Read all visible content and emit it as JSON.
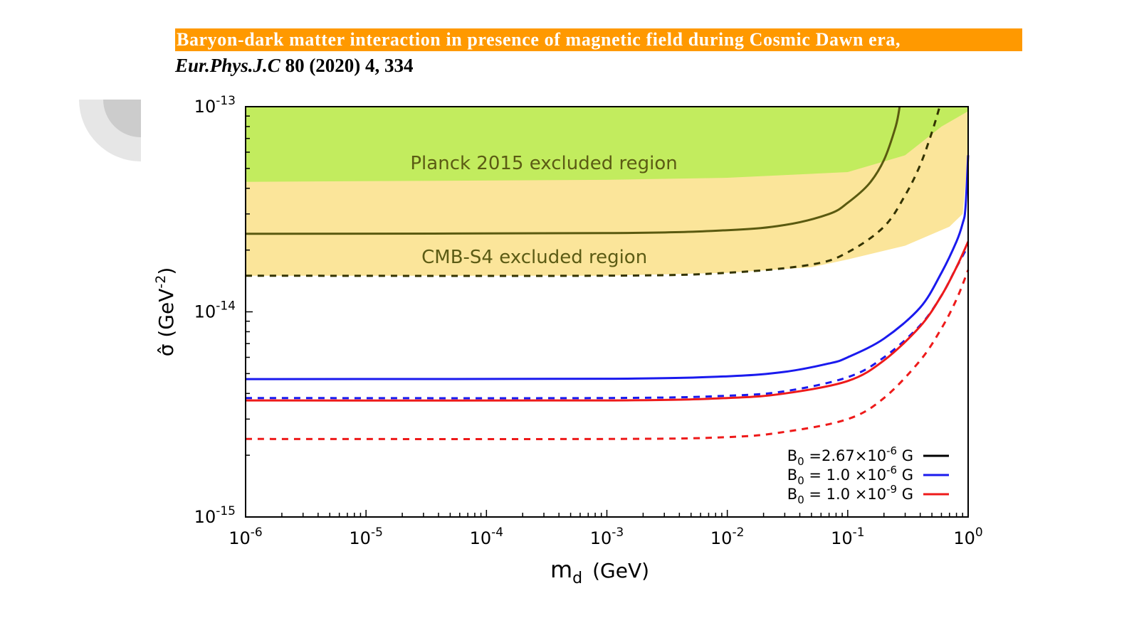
{
  "header": {
    "paper_title": "Baryon-dark matter interaction in presence of magnetic field during Cosmic Dawn era,",
    "journal": "Eur.Phys.J.C",
    "citation_rest": "80 (2020) 4, 334"
  },
  "chart_data": {
    "type": "line",
    "x_scale": "log",
    "y_scale": "log",
    "xlim": [
      1e-06,
      1
    ],
    "ylim": [
      1e-15,
      1e-13
    ],
    "xlabel": {
      "main": "m",
      "sub": "d",
      "unit": "(GeV)"
    },
    "ylabel": {
      "main": "σ̂ (GeV",
      "sup": "-2",
      "tail": ")"
    },
    "x_ticks": [
      {
        "base": "10",
        "exp": "-6",
        "value": 1e-06
      },
      {
        "base": "10",
        "exp": "-5",
        "value": 1e-05
      },
      {
        "base": "10",
        "exp": "-4",
        "value": 0.0001
      },
      {
        "base": "10",
        "exp": "-3",
        "value": 0.001
      },
      {
        "base": "10",
        "exp": "-2",
        "value": 0.01
      },
      {
        "base": "10",
        "exp": "-1",
        "value": 0.1
      },
      {
        "base": "10",
        "exp": "0",
        "value": 1
      }
    ],
    "y_ticks": [
      {
        "base": "10",
        "exp": "-15",
        "value": 1e-15
      },
      {
        "base": "10",
        "exp": "-14",
        "value": 1e-14
      },
      {
        "base": "10",
        "exp": "-13",
        "value": 1e-13
      }
    ],
    "regions": [
      {
        "label": "Planck 2015 excluded region",
        "color": "#c2ec5e",
        "boundary": [
          [
            1e-06,
            4.3e-14
          ],
          [
            0.001,
            4.4e-14
          ],
          [
            0.01,
            4.5e-14
          ],
          [
            0.1,
            4.8e-14
          ],
          [
            0.3,
            5.8e-14
          ],
          [
            0.6,
            8e-14
          ],
          [
            1,
            9.5e-14
          ]
        ]
      },
      {
        "label": "CMB-S4 excluded region",
        "color": "#fbe59a",
        "boundary": [
          [
            1e-06,
            1.5e-14
          ],
          [
            0.001,
            1.5e-14
          ],
          [
            0.01,
            1.55e-14
          ],
          [
            0.05,
            1.65e-14
          ],
          [
            0.1,
            1.8e-14
          ],
          [
            0.3,
            2.1e-14
          ],
          [
            0.7,
            2.6e-14
          ],
          [
            0.9,
            3e-14
          ],
          [
            1,
            5.8e-14
          ]
        ]
      }
    ],
    "series": [
      {
        "name": "B₀ =2.67×10⁻⁶ G",
        "color": "#5a5a10",
        "style": "solid",
        "points": [
          [
            1e-06,
            2.4e-14
          ],
          [
            0.001,
            2.42e-14
          ],
          [
            0.01,
            2.5e-14
          ],
          [
            0.03,
            2.65e-14
          ],
          [
            0.07,
            3e-14
          ],
          [
            0.1,
            3.4e-14
          ],
          [
            0.15,
            4.2e-14
          ],
          [
            0.2,
            5.5e-14
          ],
          [
            0.25,
            8e-14
          ],
          [
            0.27,
            1e-13
          ]
        ]
      },
      {
        "name": "B₀ =2.67×10⁻⁶ G (dashed)",
        "color": "#333300",
        "style": "dashed",
        "points": [
          [
            1e-06,
            1.5e-14
          ],
          [
            0.001,
            1.5e-14
          ],
          [
            0.01,
            1.55e-14
          ],
          [
            0.05,
            1.7e-14
          ],
          [
            0.1,
            1.95e-14
          ],
          [
            0.2,
            2.6e-14
          ],
          [
            0.3,
            3.7e-14
          ],
          [
            0.4,
            5.2e-14
          ],
          [
            0.5,
            7.5e-14
          ],
          [
            0.58,
            1e-13
          ]
        ]
      },
      {
        "name": "B₀ = 1.0 ×10⁻⁶ G",
        "color": "#1a1aee",
        "style": "solid",
        "points": [
          [
            1e-06,
            4.7e-15
          ],
          [
            0.001,
            4.72e-15
          ],
          [
            0.01,
            4.85e-15
          ],
          [
            0.03,
            5.1e-15
          ],
          [
            0.07,
            5.6e-15
          ],
          [
            0.1,
            6e-15
          ],
          [
            0.2,
            7.4e-15
          ],
          [
            0.4,
            1.05e-14
          ],
          [
            0.6,
            1.55e-14
          ],
          [
            0.8,
            2.2e-14
          ],
          [
            0.9,
            2.7e-14
          ],
          [
            0.95,
            3.2e-14
          ],
          [
            1,
            5.8e-14
          ]
        ]
      },
      {
        "name": "B₀ = 1.0 ×10⁻⁶ G (dashed)",
        "color": "#1a1aee",
        "style": "dashed",
        "points": [
          [
            1e-06,
            3.8e-15
          ],
          [
            0.001,
            3.8e-15
          ],
          [
            0.01,
            3.9e-15
          ],
          [
            0.03,
            4.1e-15
          ],
          [
            0.1,
            4.8e-15
          ],
          [
            0.2,
            6e-15
          ],
          [
            0.4,
            8.6e-15
          ],
          [
            0.6,
            1.2e-14
          ],
          [
            0.8,
            1.65e-14
          ],
          [
            1,
            2.1e-14
          ]
        ]
      },
      {
        "name": "B₀ = 1.0 ×10⁻⁹ G",
        "color": "#ee1a1a",
        "style": "solid",
        "points": [
          [
            1e-06,
            3.7e-15
          ],
          [
            0.001,
            3.7e-15
          ],
          [
            0.01,
            3.8e-15
          ],
          [
            0.03,
            4e-15
          ],
          [
            0.1,
            4.6e-15
          ],
          [
            0.2,
            5.8e-15
          ],
          [
            0.4,
            8.5e-15
          ],
          [
            0.6,
            1.2e-14
          ],
          [
            0.8,
            1.65e-14
          ],
          [
            1,
            2.2e-14
          ]
        ]
      },
      {
        "name": "B₀ = 1.0 ×10⁻⁹ G (dashed)",
        "color": "#ee1a1a",
        "style": "dashed",
        "points": [
          [
            1e-06,
            2.4e-15
          ],
          [
            0.001,
            2.4e-15
          ],
          [
            0.01,
            2.45e-15
          ],
          [
            0.03,
            2.6e-15
          ],
          [
            0.1,
            3e-15
          ],
          [
            0.2,
            3.8e-15
          ],
          [
            0.4,
            5.8e-15
          ],
          [
            0.6,
            8.3e-15
          ],
          [
            0.8,
            1.15e-14
          ],
          [
            1,
            1.6e-14
          ]
        ]
      }
    ],
    "legend": {
      "position": "bottom-right",
      "entries": [
        {
          "base": "B",
          "sub": "0",
          "mid": " =2.67×10",
          "sup": "-6",
          "tail": " G",
          "color": "#000000"
        },
        {
          "base": "B",
          "sub": "0",
          "mid": " = 1.0 ×10",
          "sup": "-6",
          "tail": " G",
          "color": "#1a1aee"
        },
        {
          "base": "B",
          "sub": "0",
          "mid": " = 1.0 ×10",
          "sup": "-9",
          "tail": " G",
          "color": "#ee1a1a"
        }
      ]
    },
    "grid": false
  }
}
